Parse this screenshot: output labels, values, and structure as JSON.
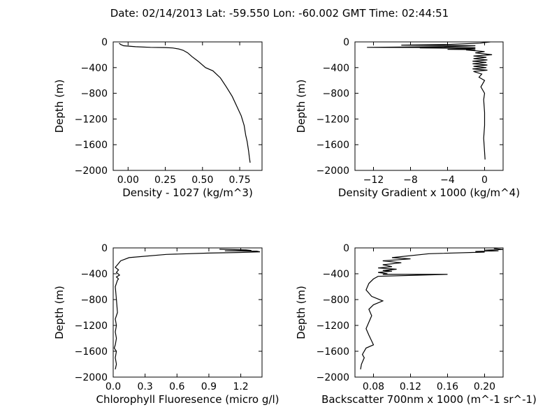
{
  "title": "Date: 02/14/2013  Lat:  -59.550 Lon:  -60.002  GMT Time: 02:44:51",
  "chart_data": [
    {
      "type": "line",
      "xlabel": "Density - 1027 (kg/m^3)",
      "ylabel": "Depth (m)",
      "xlim": [
        -0.1,
        0.9
      ],
      "ylim": [
        -2000,
        0
      ],
      "xticks": [
        0.0,
        0.25,
        0.5,
        0.75
      ],
      "xtick_labels": [
        "0.00",
        "0.25",
        "0.50",
        "0.75"
      ],
      "yticks": [
        0,
        -400,
        -800,
        -1200,
        -1600,
        -2000
      ],
      "ytick_labels": [
        "0",
        "−400",
        "−800",
        "−1200",
        "−1600",
        "−2000"
      ],
      "series": [
        {
          "x": [
            -0.06,
            -0.05,
            -0.03,
            0.05,
            0.15,
            0.25,
            0.3,
            0.34,
            0.37,
            0.4,
            0.43,
            0.47,
            0.52,
            0.57,
            0.62,
            0.66,
            0.7,
            0.73,
            0.76,
            0.78,
            0.79,
            0.8,
            0.81,
            0.815,
            0.82
          ],
          "y": [
            -20,
            -40,
            -60,
            -75,
            -85,
            -88,
            -95,
            -110,
            -130,
            -170,
            -230,
            -300,
            -400,
            -450,
            -560,
            -700,
            -850,
            -1000,
            -1150,
            -1300,
            -1450,
            -1550,
            -1700,
            -1800,
            -1880
          ]
        }
      ]
    },
    {
      "type": "line",
      "xlabel": "Density Gradient x 1000 (kg/m^4)",
      "ylabel": "Depth (m)",
      "xlim": [
        -14,
        2
      ],
      "ylim": [
        -2000,
        0
      ],
      "xticks": [
        -12,
        -8,
        -4,
        0
      ],
      "xtick_labels": [
        "−12",
        "−8",
        "−4",
        "0"
      ],
      "yticks": [
        0,
        -400,
        -800,
        -1200,
        -1600,
        -2000
      ],
      "ytick_labels": [
        "0",
        "−400",
        "−800",
        "−1200",
        "−1600",
        "−2000"
      ],
      "series": [
        {
          "x": [
            0.6,
            -0.5,
            -4,
            -9,
            -1,
            -2,
            -5,
            -12.7,
            -1,
            -7,
            -1,
            -2,
            -4,
            -1,
            -2,
            0,
            -1,
            0.8,
            -1.2,
            0.2,
            -1.2,
            0.3,
            -1.3,
            0.2,
            -1.3,
            0.3,
            -1.2,
            0.2,
            -1.3,
            0.3,
            -1.2,
            -0.3,
            -0.6,
            0,
            -0.4,
            0,
            -0.1,
            0,
            0,
            -0.1,
            0.05
          ],
          "y": [
            0,
            -20,
            -40,
            -50,
            -60,
            -65,
            -75,
            -85,
            -90,
            -95,
            -100,
            -110,
            -115,
            -120,
            -125,
            -150,
            -170,
            -200,
            -220,
            -240,
            -260,
            -280,
            -300,
            -320,
            -340,
            -360,
            -380,
            -400,
            -420,
            -440,
            -460,
            -500,
            -550,
            -600,
            -700,
            -800,
            -900,
            -1100,
            -1300,
            -1500,
            -1830
          ]
        }
      ]
    },
    {
      "type": "line",
      "xlabel": "Chlorophyll Fluoresence (micro g/l)",
      "ylabel": "Depth (m)",
      "xlim": [
        0.0,
        1.4
      ],
      "ylim": [
        -2000,
        0
      ],
      "xticks": [
        0.0,
        0.3,
        0.6,
        0.9,
        1.2
      ],
      "xtick_labels": [
        "0.0",
        "0.3",
        "0.6",
        "0.9",
        "1.2"
      ],
      "yticks": [
        0,
        -400,
        -800,
        -1200,
        -1600,
        -2000
      ],
      "ytick_labels": [
        "0",
        "−400",
        "−800",
        "−1200",
        "−1600",
        "−2000"
      ],
      "series": [
        {
          "x": [
            1.0,
            1.25,
            1.3,
            1.05,
            1.35,
            1.38,
            1.2,
            0.9,
            0.5,
            0.15,
            0.07,
            0.04,
            0.02,
            0.05,
            0.03,
            0.06,
            0.03,
            0.05,
            0.04,
            0.02,
            0.03,
            0.04,
            0.02,
            0.03,
            0.02,
            0.03,
            0.02,
            0.01,
            0.03,
            0.02,
            0.03,
            0.02
          ],
          "y": [
            -20,
            -30,
            -40,
            -45,
            -50,
            -60,
            -70,
            -80,
            -100,
            -150,
            -200,
            -260,
            -300,
            -340,
            -380,
            -420,
            -450,
            -480,
            -500,
            -600,
            -800,
            -1000,
            -1100,
            -1200,
            -1300,
            -1400,
            -1500,
            -1550,
            -1600,
            -1700,
            -1800,
            -1880
          ]
        }
      ]
    },
    {
      "type": "line",
      "xlabel": "Backscatter 700nm x 1000 (m^-1 sr^-1)",
      "ylabel": "Depth (m)",
      "xlim": [
        0.06,
        0.22
      ],
      "ylim": [
        -2000,
        0
      ],
      "xticks": [
        0.08,
        0.12,
        0.16,
        0.2
      ],
      "xtick_labels": [
        "0.08",
        "0.12",
        "0.16",
        "0.20"
      ],
      "yticks": [
        0,
        -400,
        -800,
        -1200,
        -1600,
        -2000
      ],
      "ytick_labels": [
        "0",
        "−400",
        "−800",
        "−1200",
        "−1600",
        "−2000"
      ],
      "series": [
        {
          "x": [
            0.21,
            0.22,
            0.2,
            0.215,
            0.19,
            0.2,
            0.14,
            0.1,
            0.12,
            0.09,
            0.11,
            0.09,
            0.1,
            0.085,
            0.105,
            0.09,
            0.1,
            0.085,
            0.095,
            0.09,
            0.16,
            0.085,
            0.08,
            0.075,
            0.072,
            0.078,
            0.09,
            0.08,
            0.075,
            0.078,
            0.075,
            0.072,
            0.075,
            0.08,
            0.072,
            0.068,
            0.07,
            0.067,
            0.066
          ],
          "y": [
            -10,
            -25,
            -35,
            -45,
            -55,
            -65,
            -90,
            -150,
            -170,
            -200,
            -230,
            -260,
            -290,
            -310,
            -330,
            -350,
            -360,
            -380,
            -400,
            -410,
            -410,
            -440,
            -480,
            -550,
            -650,
            -750,
            -820,
            -880,
            -950,
            -1050,
            -1150,
            -1250,
            -1350,
            -1500,
            -1550,
            -1650,
            -1700,
            -1800,
            -1880
          ]
        }
      ]
    }
  ]
}
